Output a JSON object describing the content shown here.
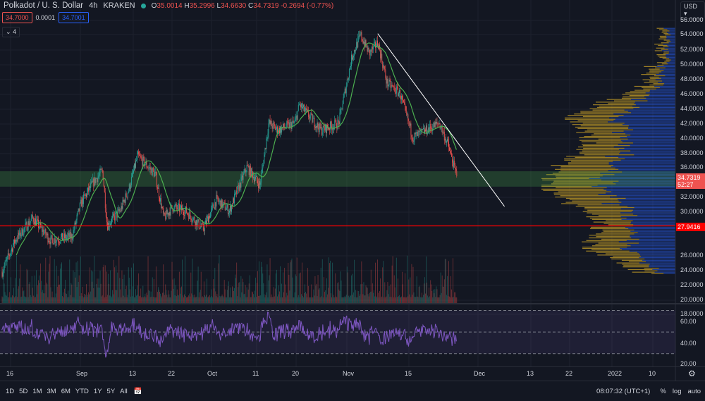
{
  "header": {
    "symbol": "Polkadot / U. S. Dollar",
    "interval": "4h",
    "exchange": "KRAKEN",
    "o_label": "O",
    "o": "35.0014",
    "h_label": "H",
    "h": "35.2996",
    "l_label": "L",
    "l": "34.6630",
    "c_label": "C",
    "c": "34.7319",
    "change": "-0.2694 (-0.77%)",
    "bid": "34.7000",
    "spread": "0.0001",
    "ask": "34.7001",
    "indicators_toggle": "4"
  },
  "currency": "USD",
  "price_axis": {
    "ticks": [
      "56.0000",
      "54.0000",
      "52.0000",
      "50.0000",
      "48.0000",
      "46.0000",
      "44.0000",
      "42.0000",
      "40.0000",
      "38.0000",
      "36.0000",
      "32.0000",
      "30.0000",
      "26.0000",
      "24.0000",
      "22.0000",
      "20.0000",
      "18.0000"
    ],
    "current_price": "34.7319",
    "countdown": "52:27",
    "line_label": "27.9416"
  },
  "rsi_axis": {
    "ticks": [
      "60.00",
      "40.00",
      "20.00"
    ]
  },
  "time_axis": {
    "ticks": [
      "16",
      "Sep",
      "13",
      "22",
      "Oct",
      "11",
      "20",
      "Nov",
      "15",
      "Dec",
      "13",
      "22",
      "2022",
      "10"
    ]
  },
  "toolbar": {
    "ranges": [
      "1D",
      "5D",
      "1M",
      "3M",
      "6M",
      "YTD",
      "1Y",
      "5Y",
      "All"
    ],
    "clock": "08:07:32 (UTC+1)",
    "percent": "%",
    "log": "log",
    "auto": "auto"
  },
  "colors": {
    "up": "#26a69a",
    "down": "#ef5350",
    "ma": "#4caf50",
    "rsi": "#7e57c2",
    "zone": "#4caf50",
    "hline": "#ff0000",
    "trendline": "#ffffff",
    "vp_up": "#2962ff",
    "vp_down": "#c9a227"
  },
  "chart_data": {
    "type": "candlestick",
    "ylim": [
      18,
      57
    ],
    "closes": [
      [
        "2021-08-14",
        21.7
      ],
      [
        "2021-08-17",
        26
      ],
      [
        "2021-08-21",
        29
      ],
      [
        "2021-08-25",
        26
      ],
      [
        "2021-08-30",
        26.5
      ],
      [
        "2021-09-01",
        31
      ],
      [
        "2021-09-04",
        34
      ],
      [
        "2021-09-06",
        35.5
      ],
      [
        "2021-09-07",
        28
      ],
      [
        "2021-09-10",
        30
      ],
      [
        "2021-09-12",
        33
      ],
      [
        "2021-09-14",
        37.5
      ],
      [
        "2021-09-18",
        35
      ],
      [
        "2021-09-20",
        29
      ],
      [
        "2021-09-22",
        30.5
      ],
      [
        "2021-09-25",
        30
      ],
      [
        "2021-09-29",
        27.5
      ],
      [
        "2021-10-02",
        31.5
      ],
      [
        "2021-10-05",
        30
      ],
      [
        "2021-10-09",
        36
      ],
      [
        "2021-10-12",
        33.5
      ],
      [
        "2021-10-14",
        42
      ],
      [
        "2021-10-16",
        41
      ],
      [
        "2021-10-20",
        42
      ],
      [
        "2021-10-21",
        44.5
      ],
      [
        "2021-10-26",
        41
      ],
      [
        "2021-10-30",
        42
      ],
      [
        "2021-11-02",
        51
      ],
      [
        "2021-11-04",
        54
      ],
      [
        "2021-11-06",
        51.5
      ],
      [
        "2021-11-08",
        53
      ],
      [
        "2021-11-10",
        47.5
      ],
      [
        "2021-11-13",
        46
      ],
      [
        "2021-11-16",
        40
      ],
      [
        "2021-11-19",
        41
      ],
      [
        "2021-11-22",
        42
      ],
      [
        "2021-11-24",
        39
      ],
      [
        "2021-11-26",
        34.7319
      ]
    ],
    "zone": [
      33.3,
      35.4
    ],
    "horizontal_line": 27.9416,
    "trendline": [
      [
        "2021-11-08",
        54.2
      ],
      [
        "2021-12-07",
        30.6
      ]
    ],
    "rsi_levels": [
      70,
      50,
      30
    ]
  }
}
